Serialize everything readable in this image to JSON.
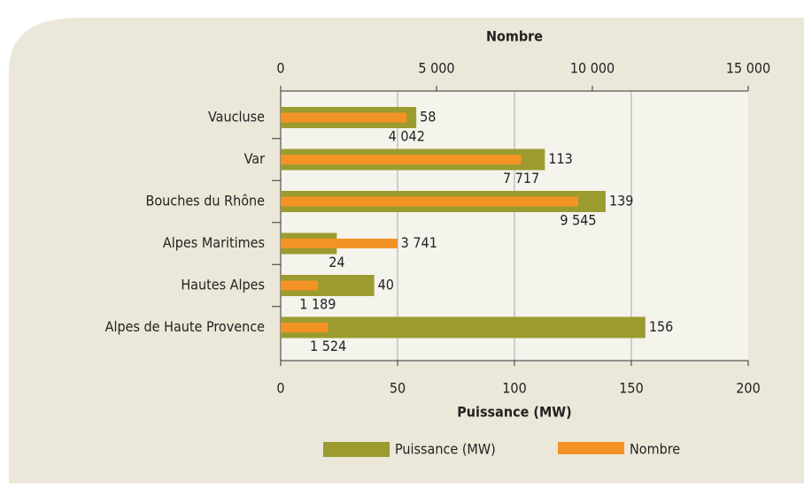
{
  "chart_data": {
    "type": "bar",
    "orientation": "horizontal",
    "categories": [
      "Vaucluse",
      "Var",
      "Bouches du Rhône",
      "Alpes Maritimes",
      "Hautes Alpes",
      "Alpes de Haute Provence"
    ],
    "series": [
      {
        "name": "Puissance (MW)",
        "color": "#9c9b2f",
        "values": [
          58,
          113,
          139,
          24,
          40,
          156
        ],
        "axis": "x"
      },
      {
        "name": "Nombre",
        "color": "#f39325",
        "values": [
          4042,
          7717,
          9545,
          3741,
          1189,
          1524
        ],
        "value_labels": [
          "4 042",
          "7 717",
          "9 545",
          "3 741",
          "1 189",
          "1 524"
        ],
        "axis": "x2"
      }
    ],
    "xlabel": "Puissance (MW)",
    "x2label": "Nombre",
    "xlim": [
      0,
      200
    ],
    "xticks": [
      0,
      50,
      100,
      150,
      200
    ],
    "x2lim": [
      0,
      15000
    ],
    "x2ticks": [
      0,
      {
        "value": 5000,
        "label": "5 000"
      },
      {
        "value": 10000,
        "label": "10 000"
      },
      {
        "value": 15000,
        "label": "15 000"
      }
    ],
    "grid": true,
    "legend": "bottom"
  }
}
